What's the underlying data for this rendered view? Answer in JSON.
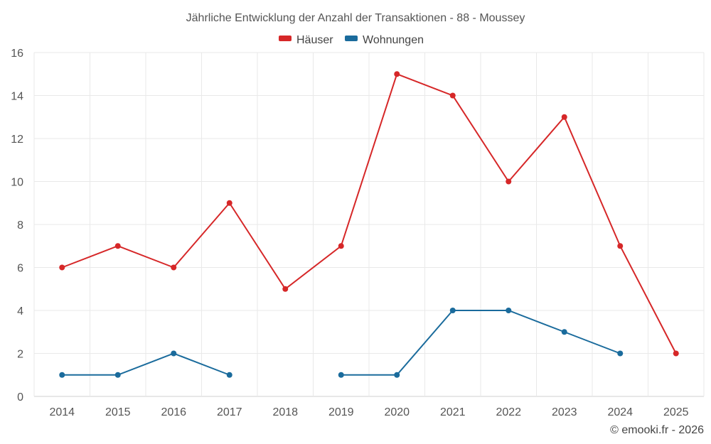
{
  "chart_data": {
    "type": "line",
    "title": "Jährliche Entwicklung der Anzahl der Transaktionen - 88 - Moussey",
    "categories": [
      "2014",
      "2015",
      "2016",
      "2017",
      "2018",
      "2019",
      "2020",
      "2021",
      "2022",
      "2023",
      "2024",
      "2025"
    ],
    "ylim": [
      0,
      16
    ],
    "yticks": [
      0,
      2,
      4,
      6,
      8,
      10,
      12,
      14,
      16
    ],
    "legend_position": "top-center",
    "grid": true,
    "series": [
      {
        "name": "Häuser",
        "color": "#d62728",
        "values": [
          6,
          7,
          6,
          9,
          5,
          7,
          15,
          14,
          10,
          13,
          7,
          2
        ]
      },
      {
        "name": "Wohnungen",
        "color": "#1a6b9c",
        "values": [
          1,
          1,
          2,
          1,
          null,
          1,
          1,
          4,
          4,
          3,
          2,
          null
        ]
      }
    ],
    "credit": "© emooki.fr - 2026"
  }
}
